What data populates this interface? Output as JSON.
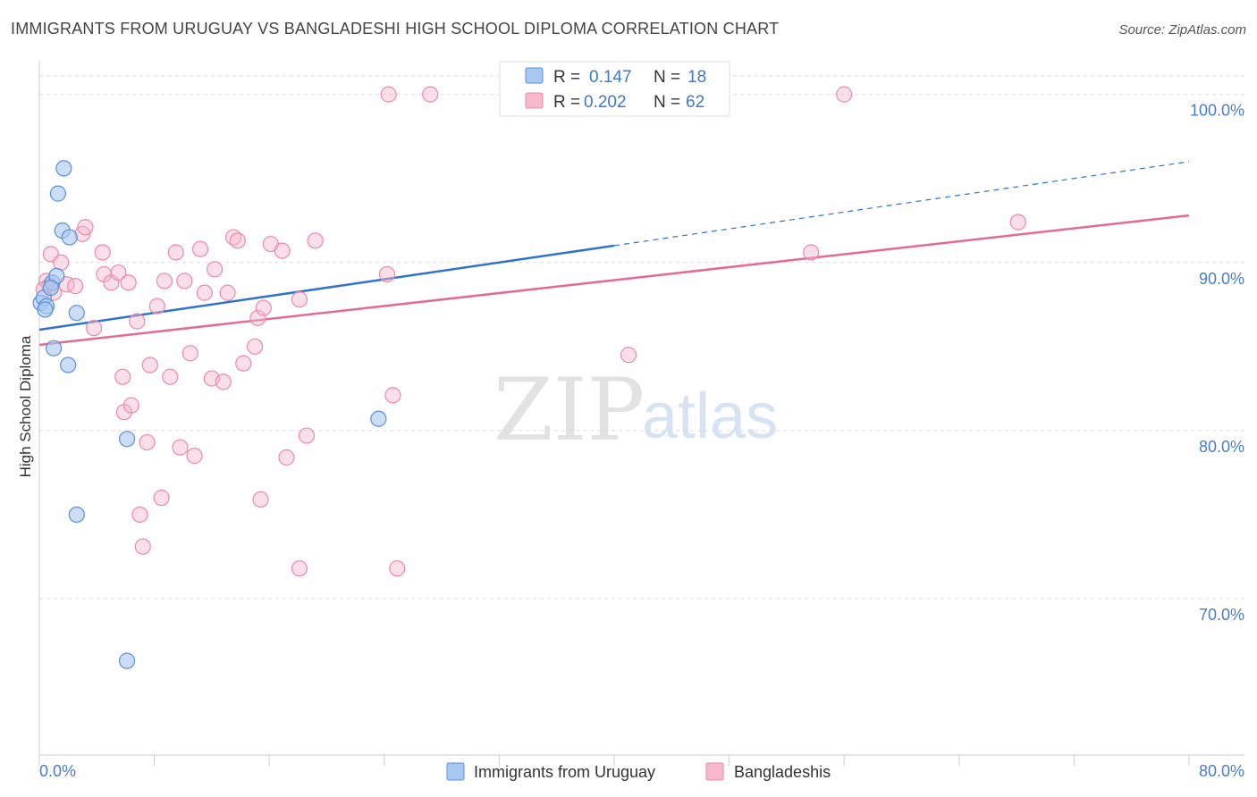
{
  "title": "IMMIGRANTS FROM URUGUAY VS BANGLADESHI HIGH SCHOOL DIPLOMA CORRELATION CHART",
  "source": "Source: ZipAtlas.com",
  "watermark": {
    "zip": "ZIP",
    "atlas": "atlas"
  },
  "colors": {
    "uruguay_fill": "#a9c8f0",
    "uruguay_stroke": "#5b8fd6",
    "uruguay_line": "#2f72cc",
    "bangla_fill": "#f6b8cb",
    "bangla_stroke": "#e88aa8",
    "bangla_line": "#e36a94"
  },
  "stats_legend": {
    "r_label": "R =",
    "n_label": "N =",
    "rows": [
      {
        "r": "0.147",
        "n": "18"
      },
      {
        "r": "0.202",
        "n": "62"
      }
    ]
  },
  "chart_data": {
    "type": "scatter",
    "title": "IMMIGRANTS FROM URUGUAY VS BANGLADESHI HIGH SCHOOL DIPLOMA CORRELATION CHART",
    "xlabel": "",
    "ylabel": "High School Diploma",
    "xlim": [
      0,
      80
    ],
    "ylim": [
      60.7,
      102
    ],
    "x_tick_labels": [
      "0.0%",
      "80.0%"
    ],
    "y_ticks": [
      70,
      80,
      90,
      100
    ],
    "y_tick_labels": [
      "70.0%",
      "80.0%",
      "90.0%",
      "100.0%"
    ],
    "grid": "horizontal dashed",
    "legend_position": "bottom-center",
    "series": [
      {
        "name": "Immigrants from Uruguay",
        "points": [
          [
            0.1,
            87.6
          ],
          [
            0.3,
            87.9
          ],
          [
            0.5,
            87.4
          ],
          [
            0.9,
            88.8
          ],
          [
            1.2,
            89.2
          ],
          [
            1.3,
            94.1
          ],
          [
            1.6,
            91.9
          ],
          [
            1.7,
            95.6
          ],
          [
            2.1,
            91.5
          ],
          [
            2.0,
            83.9
          ],
          [
            2.6,
            87.0
          ],
          [
            1.0,
            84.9
          ],
          [
            2.6,
            75.0
          ],
          [
            6.1,
            79.5
          ],
          [
            6.1,
            66.3
          ],
          [
            23.6,
            80.7
          ],
          [
            0.4,
            87.2
          ],
          [
            0.8,
            88.5
          ]
        ],
        "trend": {
          "x0": 0,
          "y0": 86.0,
          "x1": 40,
          "y1": 91.0,
          "dashed_to_x": 80,
          "dashed_to_y": 96.0
        }
      },
      {
        "name": "Bangladeshis",
        "points": [
          [
            0.5,
            88.9
          ],
          [
            0.7,
            88.6
          ],
          [
            0.8,
            90.5
          ],
          [
            1.0,
            88.2
          ],
          [
            1.5,
            90.0
          ],
          [
            1.9,
            88.7
          ],
          [
            2.5,
            88.6
          ],
          [
            3.0,
            91.7
          ],
          [
            3.2,
            92.1
          ],
          [
            3.8,
            86.1
          ],
          [
            4.4,
            90.6
          ],
          [
            4.5,
            89.3
          ],
          [
            5.0,
            88.8
          ],
          [
            5.5,
            89.4
          ],
          [
            5.8,
            83.2
          ],
          [
            6.2,
            88.8
          ],
          [
            5.9,
            81.1
          ],
          [
            6.4,
            81.5
          ],
          [
            6.8,
            86.5
          ],
          [
            7.0,
            75.0
          ],
          [
            7.2,
            73.1
          ],
          [
            7.5,
            79.3
          ],
          [
            7.7,
            83.9
          ],
          [
            8.2,
            87.4
          ],
          [
            8.5,
            76.0
          ],
          [
            8.7,
            88.9
          ],
          [
            9.1,
            83.2
          ],
          [
            9.5,
            90.6
          ],
          [
            9.8,
            79.0
          ],
          [
            10.1,
            88.9
          ],
          [
            10.5,
            84.6
          ],
          [
            10.8,
            78.5
          ],
          [
            11.2,
            90.8
          ],
          [
            11.5,
            88.2
          ],
          [
            12.0,
            83.1
          ],
          [
            12.2,
            89.6
          ],
          [
            12.8,
            82.9
          ],
          [
            13.1,
            88.2
          ],
          [
            13.5,
            91.5
          ],
          [
            13.8,
            91.3
          ],
          [
            14.2,
            84.0
          ],
          [
            15.0,
            85.0
          ],
          [
            15.2,
            86.7
          ],
          [
            15.6,
            87.3
          ],
          [
            15.4,
            75.9
          ],
          [
            16.1,
            91.1
          ],
          [
            16.9,
            90.7
          ],
          [
            17.2,
            78.4
          ],
          [
            18.1,
            87.8
          ],
          [
            18.1,
            71.8
          ],
          [
            18.6,
            79.7
          ],
          [
            19.2,
            91.3
          ],
          [
            24.6,
            82.1
          ],
          [
            24.2,
            89.3
          ],
          [
            24.9,
            71.8
          ],
          [
            24.3,
            100.0
          ],
          [
            27.2,
            100.0
          ],
          [
            41.0,
            84.5
          ],
          [
            53.7,
            90.6
          ],
          [
            56.0,
            100.0
          ],
          [
            68.1,
            92.4
          ],
          [
            0.3,
            88.4
          ]
        ],
        "trend": {
          "x0": 0,
          "y0": 85.1,
          "x1": 80,
          "y1": 92.8
        }
      }
    ]
  }
}
